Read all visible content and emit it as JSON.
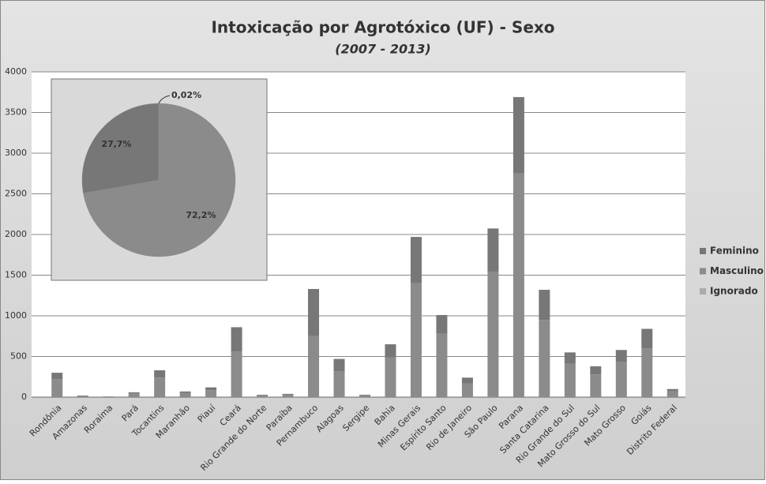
{
  "chart_data": [
    {
      "type": "bar",
      "stacked": true,
      "title": "Intoxicação por Agrotóxico (UF) - Sexo",
      "subtitle": "(2007 - 2013)",
      "categories": [
        "Rondônia",
        "Amazonas",
        "Roraima",
        "Pará",
        "Tocantins",
        "Maranhão",
        "Piauí",
        "Ceará",
        "Rio Grande do Norte",
        "Paraíba",
        "Pernambuco",
        "Alagoas",
        "Sergipe",
        "Bahia",
        "Minas Gerais",
        "Espírito Santo",
        "Rio de Janeiro",
        "São Paulo",
        "Parana",
        "Santa Catarina",
        "Rio Grande do Sul",
        "Mato Grosso do Sul",
        "Mato Grosso",
        "Goiás",
        "Distrito Federal"
      ],
      "series": [
        {
          "name": "Feminino",
          "color": "#777777",
          "values": [
            80,
            5,
            3,
            15,
            90,
            20,
            35,
            300,
            8,
            12,
            580,
            150,
            8,
            160,
            570,
            230,
            70,
            530,
            940,
            370,
            140,
            100,
            150,
            240,
            30
          ]
        },
        {
          "name": "Masculino",
          "color": "#8b8b8b",
          "values": [
            220,
            15,
            7,
            45,
            240,
            50,
            85,
            560,
            22,
            28,
            750,
            320,
            22,
            490,
            1400,
            780,
            170,
            1540,
            2750,
            950,
            410,
            280,
            430,
            600,
            70
          ]
        },
        {
          "name": "Ignorado",
          "color": "#ababab",
          "values": [
            0,
            0,
            0,
            0,
            0,
            0,
            0,
            0,
            0,
            0,
            0,
            0,
            0,
            0,
            0,
            0,
            0,
            4,
            0,
            0,
            0,
            0,
            0,
            0,
            0
          ]
        }
      ],
      "ylim": [
        0,
        4000
      ],
      "yticks": [
        0,
        500,
        1000,
        1500,
        2000,
        2500,
        3000,
        3500,
        4000
      ],
      "grid": true,
      "legend": "right"
    },
    {
      "type": "pie",
      "values": [
        72.2,
        27.7,
        0.02
      ],
      "value_labels": [
        "72,2%",
        "27,7%",
        "0,02%"
      ],
      "colors": [
        "#8b8b8b",
        "#777777",
        "#ababab"
      ]
    }
  ]
}
